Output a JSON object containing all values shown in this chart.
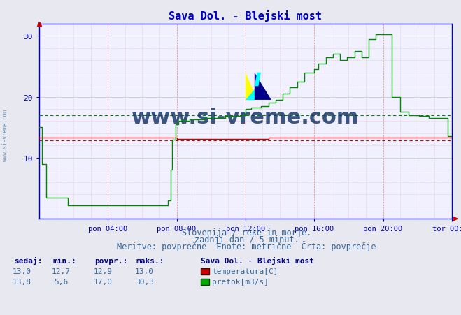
{
  "title": "Sava Dol. - Blejski most",
  "title_color": "#0000cc",
  "bg_color": "#e8e8f0",
  "plot_bg_color": "#f0f0ff",
  "xlabel_color": "#0000aa",
  "ylim": [
    0,
    32
  ],
  "yticks": [
    10,
    20,
    30
  ],
  "xlim": [
    0,
    288
  ],
  "xtick_labels": [
    "pon 04:00",
    "pon 08:00",
    "pon 12:00",
    "pon 16:00",
    "pon 20:00",
    "tor 00:00"
  ],
  "xtick_positions": [
    48,
    96,
    144,
    192,
    240,
    288
  ],
  "temp_color": "#cc0000",
  "flow_color": "#008800",
  "temp_avg": 12.9,
  "flow_avg": 17.0,
  "subtitle1": "Slovenija / reke in morje.",
  "subtitle2": "zadnji dan / 5 minut.",
  "subtitle3": "Meritve: povprečne  Enote: metrične  Črta: povprečje",
  "legend_title": "Sava Dol. - Blejski most",
  "legend_temp_label": "temperatura[C]",
  "legend_flow_label": "pretok[m3/s]",
  "table_headers": [
    "sedaj:",
    "min.:",
    "povpr.:",
    "maks.:"
  ],
  "temp_row": [
    "13,0",
    "12,7",
    "12,9",
    "13,0"
  ],
  "flow_row": [
    "13,8",
    "5,6",
    "17,0",
    "30,3"
  ],
  "watermark": "www.si-vreme.com",
  "watermark_color": "#1a3a6a",
  "side_watermark_color": "#6688aa",
  "arrow_color": "#cc0000"
}
